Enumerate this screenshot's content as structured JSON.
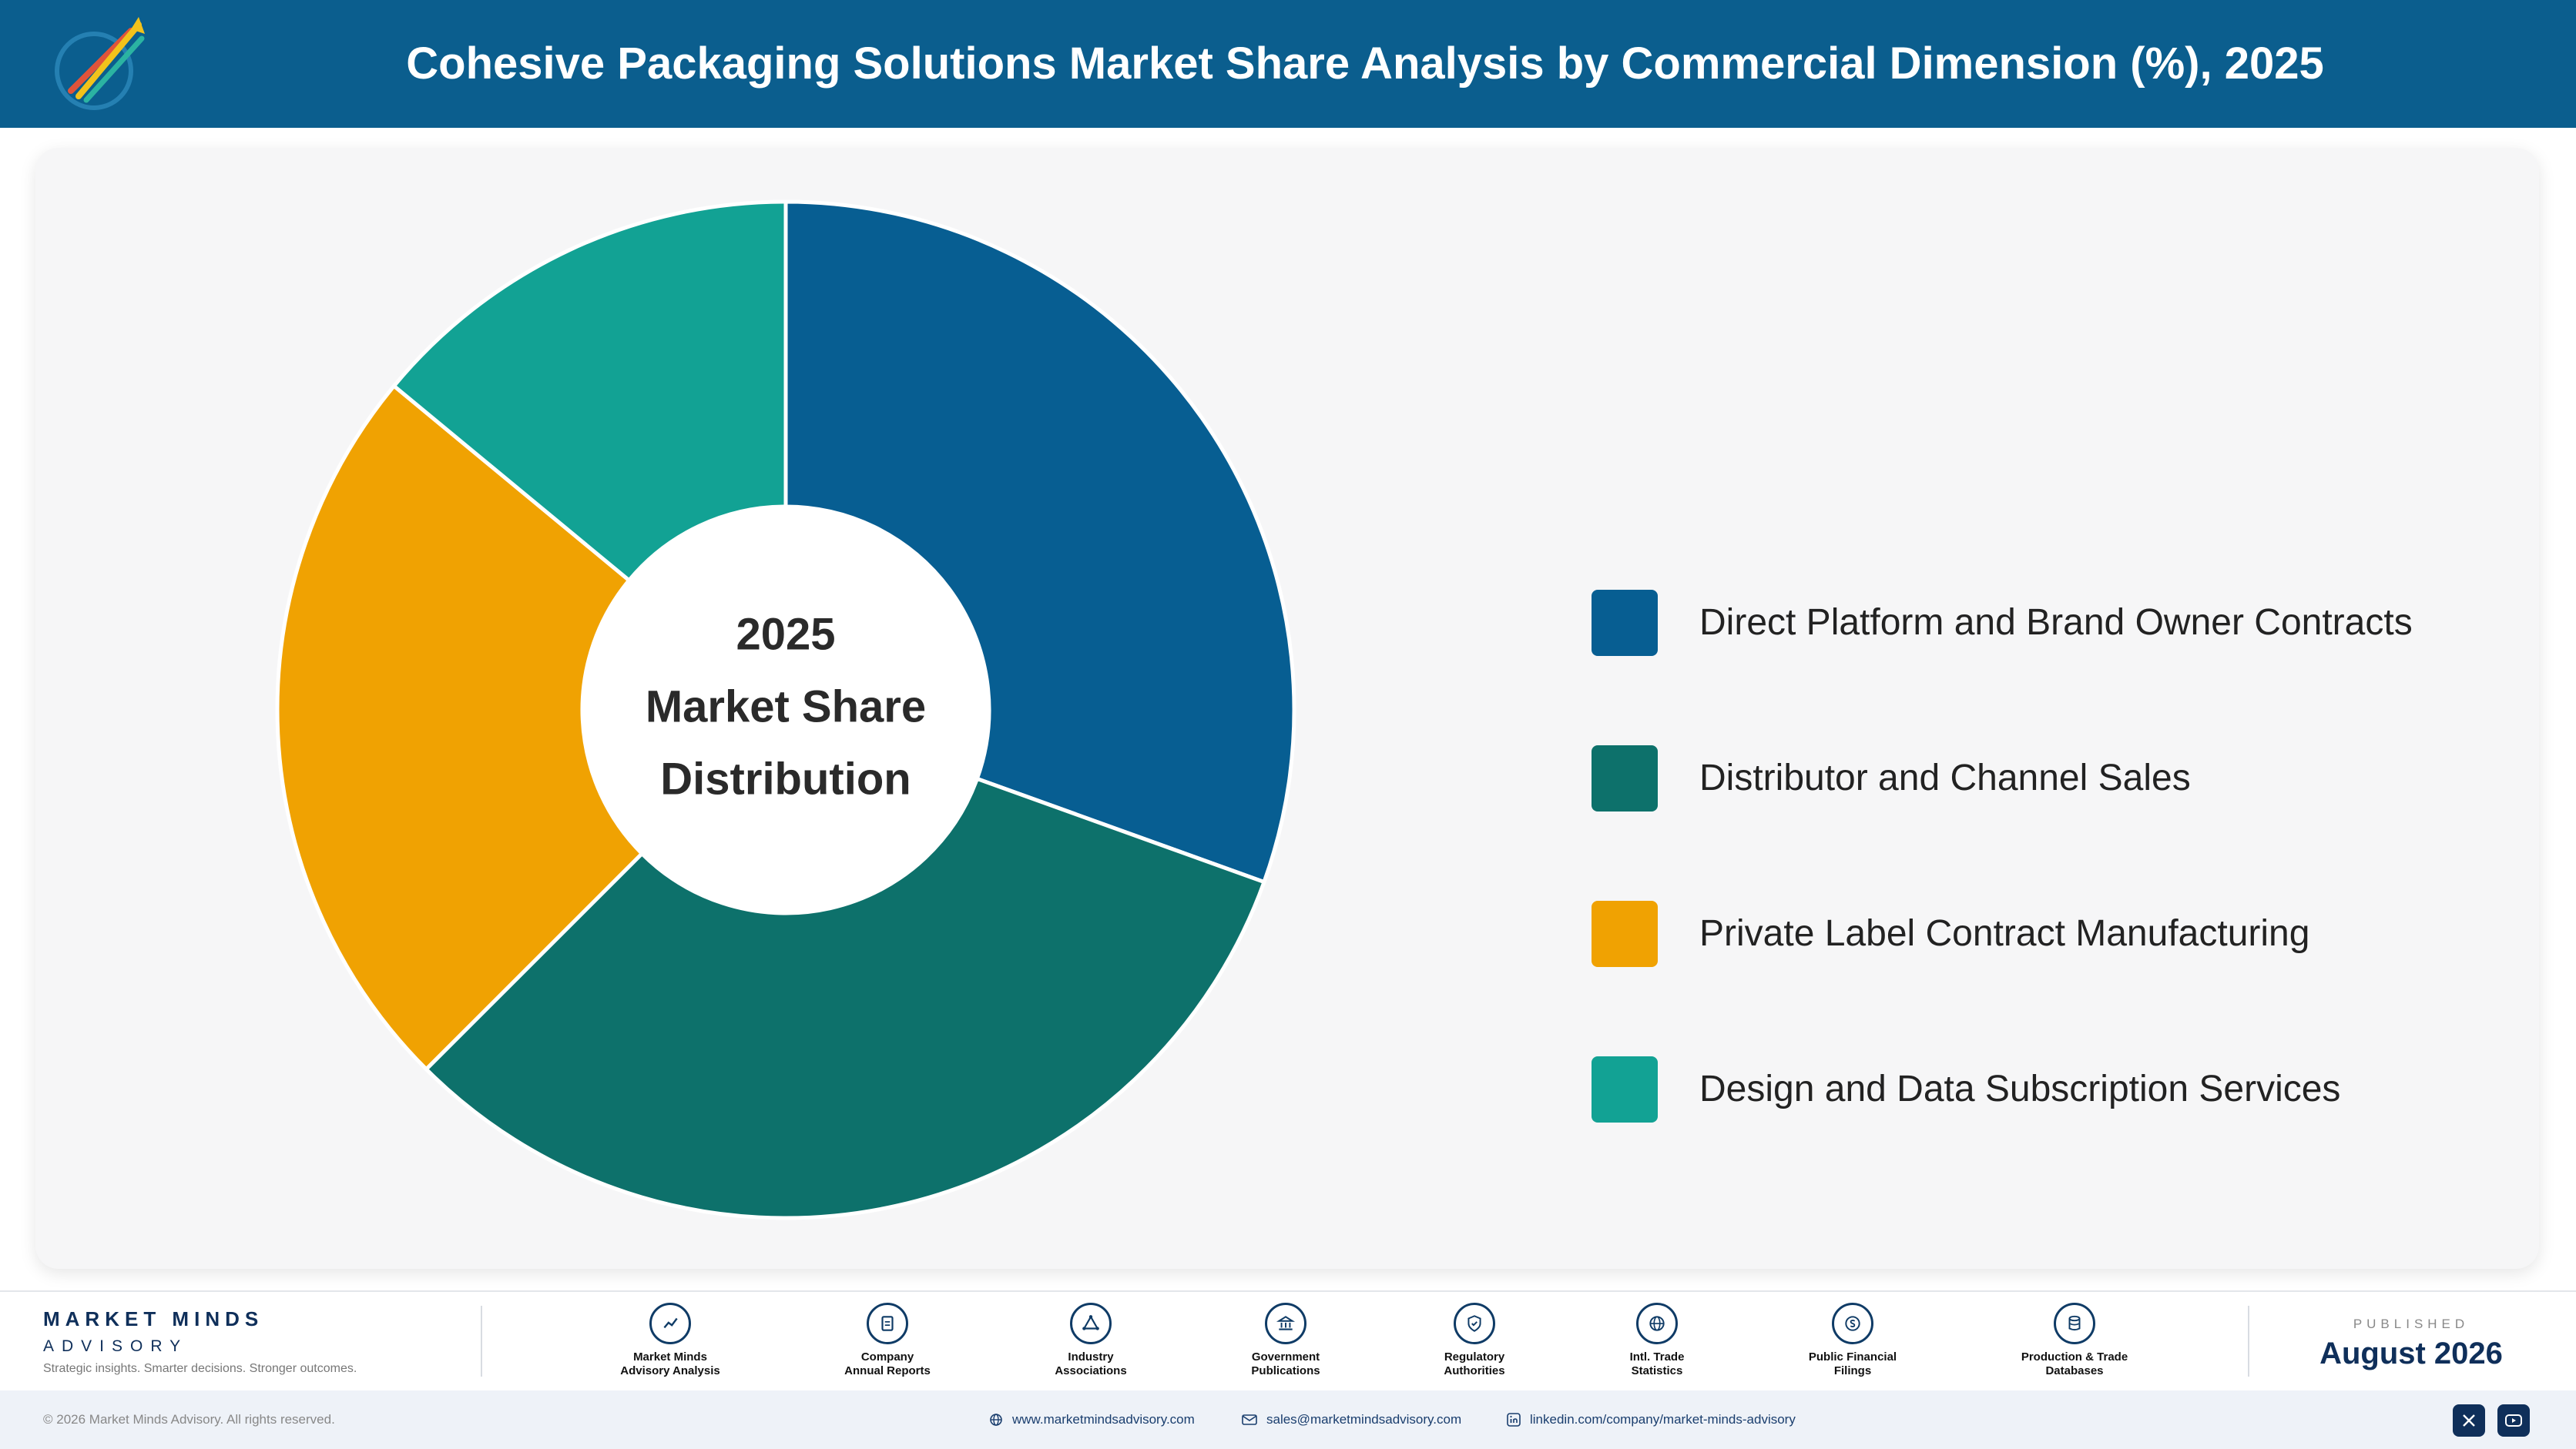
{
  "header": {
    "title": "Cohesive Packaging Solutions Market Share Analysis by Commercial Dimension (%), 2025",
    "logo_icon": "rocket-logo-icon",
    "bg_color": "#0b5e8e"
  },
  "chart_data": {
    "type": "pie",
    "variant": "donut",
    "center_label": [
      "2025",
      "Market Share",
      "Distribution"
    ],
    "start_angle_deg": 0,
    "direction": "clockwise",
    "legend_position": "right",
    "series": [
      {
        "name": "Direct Platform and Brand Owner Contracts",
        "value": 30.5,
        "color": "#075e92"
      },
      {
        "name": "Distributor and Channel Sales",
        "value": 32.0,
        "color": "#0d716b"
      },
      {
        "name": "Private Label Contract Manufacturing",
        "value": 23.5,
        "color": "#f0a202"
      },
      {
        "name": "Design and Data Subscription Services",
        "value": 14.0,
        "color": "#12a294"
      }
    ]
  },
  "footer": {
    "brand_name": "MARKET MINDS",
    "brand_sub": "ADVISORY",
    "tagline": "Strategic insights. Smarter decisions. Stronger outcomes.",
    "sources": [
      {
        "line1": "Market Minds",
        "line2": "Advisory Analysis",
        "icon": "trend-chart-icon"
      },
      {
        "line1": "Company",
        "line2": "Annual Reports",
        "icon": "document-icon"
      },
      {
        "line1": "Industry",
        "line2": "Associations",
        "icon": "network-icon"
      },
      {
        "line1": "Government",
        "line2": "Publications",
        "icon": "government-building-icon"
      },
      {
        "line1": "Regulatory",
        "line2": "Authorities",
        "icon": "shield-check-icon"
      },
      {
        "line1": "Intl. Trade",
        "line2": "Statistics",
        "icon": "globe-icon"
      },
      {
        "line1": "Public Financial",
        "line2": "Filings",
        "icon": "currency-icon"
      },
      {
        "line1": "Production & Trade",
        "line2": "Databases",
        "icon": "database-icon"
      }
    ],
    "published_label": "PUBLISHED",
    "published_date": "August 2026"
  },
  "bottom_bar": {
    "copyright": "© 2026 Market Minds Advisory. All rights reserved.",
    "website": "www.marketmindsadvisory.com",
    "email": "sales@marketmindsadvisory.com",
    "linkedin": "linkedin.com/company/market-minds-advisory",
    "social_icons": [
      "x-icon",
      "youtube-icon"
    ]
  }
}
